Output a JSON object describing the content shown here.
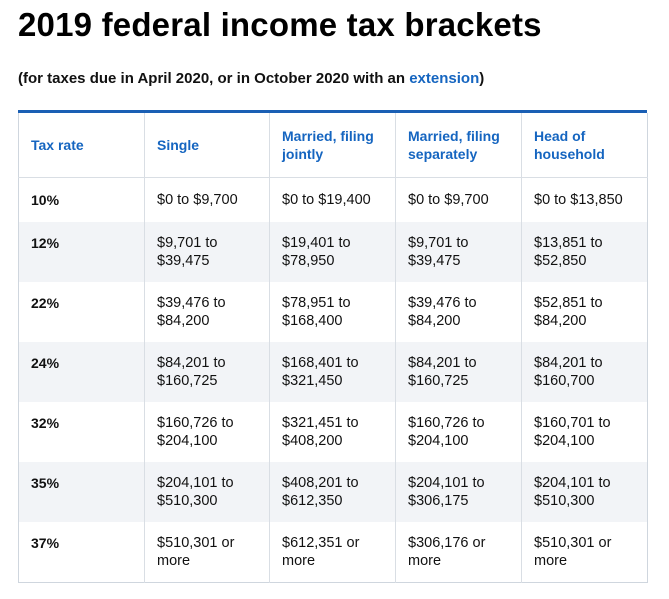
{
  "title": "2019 federal income tax brackets",
  "subtitle": {
    "before": "(for taxes due in April 2020, or in October 2020 with an ",
    "link": "extension",
    "after": ")"
  },
  "table": {
    "headers": [
      "Tax rate",
      "Single",
      "Married, filing jointly",
      "Married, filing separately",
      "Head of household"
    ],
    "rows": [
      [
        "10%",
        "$0 to $9,700",
        "$0 to $19,400",
        "$0 to $9,700",
        "$0 to $13,850"
      ],
      [
        "12%",
        "$9,701 to $39,475",
        "$19,401 to $78,950",
        "$9,701 to $39,475",
        "$13,851 to $52,850"
      ],
      [
        "22%",
        "$39,476 to $84,200",
        "$78,951 to $168,400",
        "$39,476 to $84,200",
        "$52,851 to $84,200"
      ],
      [
        "24%",
        "$84,201 to $160,725",
        "$168,401 to $321,450",
        "$84,201 to $160,725",
        "$84,201 to $160,700"
      ],
      [
        "32%",
        "$160,726 to $204,100",
        "$321,451 to $408,200",
        "$160,726 to $204,100",
        "$160,701 to $204,100"
      ],
      [
        "35%",
        "$204,101 to $510,300",
        "$408,201 to $612,350",
        "$204,101 to $306,175",
        "$204,101 to $510,300"
      ],
      [
        "37%",
        "$510,301 or more",
        "$612,351 or more",
        "$306,176 or more",
        "$510,301 or more"
      ]
    ]
  },
  "colors": {
    "accent": "#1565c0",
    "border": "#1a5fb4",
    "stripe": "#f2f4f7"
  }
}
